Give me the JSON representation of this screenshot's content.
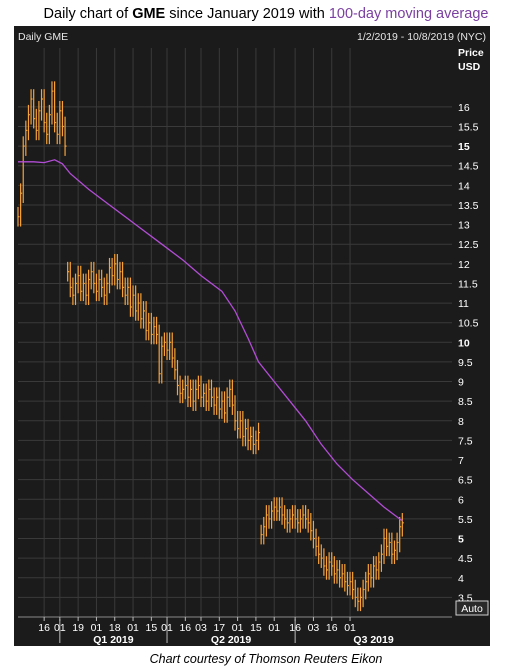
{
  "title": {
    "prefix": "Daily chart of ",
    "ticker": "GME",
    "middle": " since January 2019 with ",
    "ma_label": "100-day moving average"
  },
  "panel": {
    "name": "Daily GME",
    "date_range": "1/2/2019 - 10/8/2019 (NYC)",
    "price_label_1": "Price",
    "price_label_2": "USD",
    "auto_button": "Auto"
  },
  "caption": "Chart courtesy of Thomson Reuters Eikon",
  "colors": {
    "background": "#1b1b1b",
    "grid": "#3a3a3a",
    "price": "#f7a23a",
    "moving_average": "#b24dd6",
    "text": "#ffffff"
  },
  "chart_data": {
    "type": "line",
    "title": "Daily chart of GME since January 2019 with 100-day moving average",
    "ylabel": "Price USD",
    "ylim": [
      3.0,
      17.5
    ],
    "y_ticks": [
      {
        "v": 3.5,
        "label": "3.5",
        "bold": false
      },
      {
        "v": 4,
        "label": "4",
        "bold": false
      },
      {
        "v": 4.5,
        "label": "4.5",
        "bold": false
      },
      {
        "v": 5,
        "label": "5",
        "bold": true
      },
      {
        "v": 5.5,
        "label": "5.5",
        "bold": false
      },
      {
        "v": 6,
        "label": "6",
        "bold": false
      },
      {
        "v": 6.5,
        "label": "6.5",
        "bold": false
      },
      {
        "v": 7,
        "label": "7",
        "bold": false
      },
      {
        "v": 7.5,
        "label": "7.5",
        "bold": false
      },
      {
        "v": 8,
        "label": "8",
        "bold": false
      },
      {
        "v": 8.5,
        "label": "8.5",
        "bold": false
      },
      {
        "v": 9,
        "label": "9",
        "bold": false
      },
      {
        "v": 9.5,
        "label": "9.5",
        "bold": false
      },
      {
        "v": 10,
        "label": "10",
        "bold": true
      },
      {
        "v": 10.5,
        "label": "10.5",
        "bold": false
      },
      {
        "v": 11,
        "label": "11",
        "bold": false
      },
      {
        "v": 11.5,
        "label": "11.5",
        "bold": false
      },
      {
        "v": 12,
        "label": "12",
        "bold": false
      },
      {
        "v": 12.5,
        "label": "12.5",
        "bold": false
      },
      {
        "v": 13,
        "label": "13",
        "bold": false
      },
      {
        "v": 13.5,
        "label": "13.5",
        "bold": false
      },
      {
        "v": 14,
        "label": "14",
        "bold": false
      },
      {
        "v": 14.5,
        "label": "14.5",
        "bold": false
      },
      {
        "v": 15,
        "label": "15",
        "bold": true
      },
      {
        "v": 15.5,
        "label": "15.5",
        "bold": false
      },
      {
        "v": 16,
        "label": "16",
        "bold": false
      }
    ],
    "x_ticks": [
      "16",
      "01",
      "19",
      "01",
      "18",
      "01",
      "15",
      "01",
      "16",
      "03",
      "17",
      "01",
      "15",
      "01",
      "16",
      "03",
      "16",
      "01"
    ],
    "quarters": [
      "Q1 2019",
      "Q2 2019",
      "Q3 2019"
    ],
    "series": [
      {
        "name": "GME",
        "style": "ohlc",
        "segments": [
          [
            [
              0,
              13.2
            ],
            [
              1,
              13.8
            ],
            [
              2,
              15.0
            ],
            [
              3,
              15.4
            ],
            [
              4,
              15.8
            ],
            [
              5,
              16.2
            ],
            [
              6,
              15.7
            ],
            [
              7,
              15.4
            ],
            [
              8,
              15.9
            ],
            [
              9,
              16.2
            ],
            [
              10,
              15.6
            ],
            [
              11,
              15.3
            ],
            [
              12,
              15.8
            ],
            [
              13,
              16.4
            ],
            [
              14,
              15.6
            ],
            [
              15,
              15.3
            ],
            [
              16,
              15.9
            ],
            [
              17,
              15.5
            ],
            [
              18,
              15.0
            ]
          ],
          [
            [
              19,
              11.8
            ],
            [
              20,
              11.4
            ],
            [
              21,
              11.2
            ],
            [
              22,
              11.5
            ],
            [
              23,
              11.7
            ],
            [
              24,
              11.3
            ],
            [
              25,
              11.5
            ],
            [
              26,
              11.2
            ],
            [
              27,
              11.6
            ],
            [
              28,
              11.8
            ],
            [
              29,
              11.5
            ],
            [
              30,
              11.3
            ],
            [
              31,
              11.6
            ],
            [
              32,
              11.4
            ],
            [
              33,
              11.2
            ],
            [
              34,
              11.5
            ],
            [
              35,
              11.9
            ],
            [
              36,
              11.7
            ],
            [
              37,
              12.0
            ],
            [
              38,
              11.6
            ],
            [
              39,
              11.8
            ],
            [
              40,
              11.4
            ],
            [
              41,
              11.2
            ],
            [
              42,
              11.4
            ],
            [
              43,
              10.9
            ],
            [
              44,
              11.2
            ],
            [
              45,
              10.8
            ],
            [
              46,
              11.0
            ],
            [
              47,
              10.6
            ],
            [
              48,
              10.8
            ],
            [
              49,
              10.3
            ],
            [
              50,
              10.5
            ],
            [
              51,
              10.2
            ],
            [
              52,
              10.4
            ],
            [
              53,
              10.2
            ],
            [
              54,
              9.2
            ],
            [
              55,
              9.9
            ],
            [
              56,
              10.0
            ],
            [
              57,
              9.8
            ],
            [
              58,
              10.0
            ],
            [
              59,
              9.6
            ],
            [
              60,
              9.3
            ],
            [
              61,
              8.9
            ],
            [
              62,
              8.7
            ],
            [
              63,
              8.8
            ],
            [
              64,
              8.9
            ],
            [
              65,
              8.6
            ],
            [
              66,
              8.8
            ],
            [
              67,
              8.5
            ],
            [
              68,
              8.8
            ],
            [
              69,
              8.9
            ],
            [
              70,
              8.6
            ],
            [
              71,
              8.7
            ],
            [
              72,
              8.5
            ],
            [
              73,
              8.8
            ],
            [
              74,
              8.6
            ],
            [
              75,
              8.4
            ],
            [
              76,
              8.6
            ],
            [
              77,
              8.3
            ],
            [
              78,
              8.5
            ],
            [
              79,
              8.2
            ],
            [
              80,
              8.6
            ],
            [
              81,
              8.8
            ],
            [
              82,
              8.4
            ],
            [
              83,
              8.0
            ],
            [
              84,
              7.8
            ],
            [
              85,
              8.0
            ],
            [
              86,
              7.6
            ],
            [
              87,
              7.8
            ],
            [
              88,
              7.5
            ],
            [
              89,
              7.6
            ],
            [
              90,
              7.4
            ],
            [
              91,
              7.5
            ],
            [
              92,
              7.7
            ]
          ],
          [
            [
              93,
              5.1
            ],
            [
              94,
              5.3
            ],
            [
              95,
              5.6
            ],
            [
              96,
              5.5
            ],
            [
              97,
              5.7
            ],
            [
              98,
              5.8
            ],
            [
              99,
              5.7
            ],
            [
              100,
              5.8
            ],
            [
              101,
              5.6
            ],
            [
              102,
              5.5
            ],
            [
              103,
              5.4
            ],
            [
              104,
              5.5
            ],
            [
              105,
              5.6
            ],
            [
              106,
              5.5
            ],
            [
              107,
              5.4
            ],
            [
              108,
              5.5
            ],
            [
              109,
              5.6
            ],
            [
              110,
              5.5
            ],
            [
              111,
              5.4
            ],
            [
              112,
              5.2
            ],
            [
              113,
              5.0
            ],
            [
              114,
              4.8
            ],
            [
              115,
              4.6
            ],
            [
              116,
              4.5
            ],
            [
              117,
              4.3
            ],
            [
              118,
              4.2
            ],
            [
              119,
              4.4
            ],
            [
              120,
              4.3
            ],
            [
              121,
              4.1
            ],
            [
              122,
              4.2
            ],
            [
              123,
              4.0
            ],
            [
              124,
              4.1
            ],
            [
              125,
              3.9
            ],
            [
              126,
              3.8
            ],
            [
              127,
              3.9
            ],
            [
              128,
              3.7
            ],
            [
              129,
              3.5
            ],
            [
              130,
              3.4
            ],
            [
              131,
              3.5
            ],
            [
              132,
              3.7
            ],
            [
              133,
              3.9
            ],
            [
              134,
              4.1
            ],
            [
              135,
              4.0
            ],
            [
              136,
              4.3
            ],
            [
              137,
              4.2
            ],
            [
              138,
              4.4
            ],
            [
              139,
              4.6
            ],
            [
              140,
              5.0
            ],
            [
              141,
              4.8
            ],
            [
              142,
              4.9
            ],
            [
              143,
              4.6
            ],
            [
              144,
              4.7
            ],
            [
              145,
              4.9
            ],
            [
              146,
              5.3
            ],
            [
              147,
              5.4
            ]
          ]
        ]
      },
      {
        "name": "100-day moving average",
        "style": "line",
        "points": [
          [
            0,
            14.6
          ],
          [
            6,
            14.6
          ],
          [
            10,
            14.58
          ],
          [
            14,
            14.65
          ],
          [
            17,
            14.55
          ],
          [
            20,
            14.3
          ],
          [
            27,
            13.9
          ],
          [
            35,
            13.5
          ],
          [
            45,
            13.0
          ],
          [
            55,
            12.5
          ],
          [
            63,
            12.1
          ],
          [
            70,
            11.7
          ],
          [
            78,
            11.3
          ],
          [
            83,
            10.8
          ],
          [
            88,
            10.1
          ],
          [
            92,
            9.5
          ],
          [
            98,
            9.0
          ],
          [
            104,
            8.5
          ],
          [
            110,
            8.0
          ],
          [
            116,
            7.4
          ],
          [
            122,
            6.9
          ],
          [
            128,
            6.5
          ],
          [
            134,
            6.15
          ],
          [
            140,
            5.8
          ],
          [
            147,
            5.45
          ]
        ]
      }
    ]
  }
}
